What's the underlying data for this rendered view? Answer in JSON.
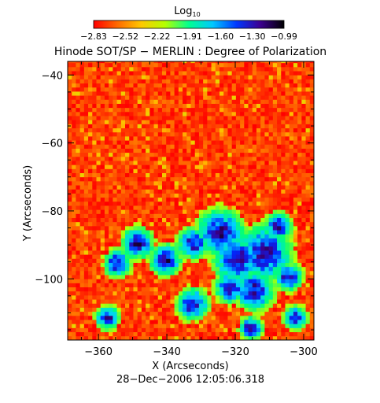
{
  "chart_data": {
    "type": "heatmap",
    "title": "Hinode SOT/SP − MERLIN : Degree of Polarization",
    "xlabel": "X (Arcseconds)",
    "ylabel": "Y (Arcseconds)",
    "xlim": [
      -369,
      -297
    ],
    "ylim": [
      -118,
      -36
    ],
    "xticks": [
      -360,
      -340,
      -320,
      -300
    ],
    "xtick_labels": [
      "−360",
      "−340",
      "−320",
      "−300"
    ],
    "yticks": [
      -100,
      -80,
      -60,
      -40
    ],
    "ytick_labels": [
      "−100",
      "−80",
      "−60",
      "−40"
    ],
    "colorbar": {
      "label_base": "Log",
      "label_sub": "10",
      "range": [
        -2.83,
        -0.99
      ],
      "tick_labels": [
        "−2.83",
        "−2.52",
        "−2.22",
        "−1.91",
        "−1.60",
        "−1.30",
        "−0.99"
      ],
      "colors": [
        "#ff0000",
        "#ff6a00",
        "#ffc800",
        "#b4ff00",
        "#00ff90",
        "#00c8ff",
        "#0038ff",
        "#3c0090",
        "#000000"
      ]
    },
    "timestamp": "28−Dec−2006 12:05:06.318",
    "strong_regions": [
      {
        "x": -325,
        "y": -87,
        "r": 6
      },
      {
        "x": -320,
        "y": -95,
        "r": 6
      },
      {
        "x": -312,
        "y": -93,
        "r": 7
      },
      {
        "x": -308,
        "y": -85,
        "r": 3.5
      },
      {
        "x": -333,
        "y": -90,
        "r": 4
      },
      {
        "x": -341,
        "y": -95,
        "r": 4
      },
      {
        "x": -349,
        "y": -90,
        "r": 4
      },
      {
        "x": -355,
        "y": -96,
        "r": 3.5
      },
      {
        "x": -333,
        "y": -108,
        "r": 4
      },
      {
        "x": -315,
        "y": -104,
        "r": 5
      },
      {
        "x": -322,
        "y": -103,
        "r": 4
      },
      {
        "x": -305,
        "y": -100,
        "r": 3.5
      },
      {
        "x": -358,
        "y": -112,
        "r": 3
      },
      {
        "x": -316,
        "y": -115,
        "r": 3
      },
      {
        "x": -303,
        "y": -112,
        "r": 3
      }
    ]
  }
}
